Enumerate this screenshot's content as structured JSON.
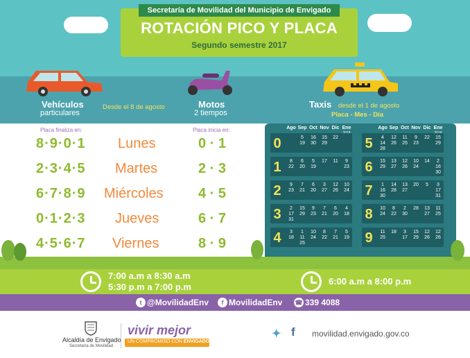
{
  "header": {
    "entity": "Secretaría de Movilidad del Municipio de Envigado",
    "title": "ROTACIÓN PICO Y PLACA",
    "subtitle": "Segundo semestre 2017"
  },
  "vehicles": {
    "cars_title": "Vehículos",
    "cars_sub": "particulares",
    "since": "Desde el 8 de agosto",
    "motos_title": "Motos",
    "motos_sub": "2 tiempos",
    "taxis_title": "Taxis",
    "taxis_since": "desde el 1 de agosto",
    "taxis_legend": "Placa - Mes - Día"
  },
  "left_panel": {
    "plate_ends_label": "Placa finaliza en:",
    "plate_starts_label": "Placa inicia en:",
    "rows": [
      {
        "ends": "8·9·0·1",
        "day": "Lunes",
        "starts": "0 · 1"
      },
      {
        "ends": "2·3·4·5",
        "day": "Martes",
        "starts": "2 · 3"
      },
      {
        "ends": "6·7·8·9",
        "day": "Miércoles",
        "starts": "4 · 5"
      },
      {
        "ends": "0·1·2·3",
        "day": "Jueves",
        "starts": "6 · 7"
      },
      {
        "ends": "4·5·6·7",
        "day": "Viernes",
        "starts": "8 · 9"
      }
    ]
  },
  "taxi_table": {
    "months": [
      "Ago",
      "Sep",
      "Oct",
      "Nov",
      "Dic",
      "Ene"
    ],
    "months_year": "2018",
    "left": [
      {
        "digit": "0",
        "cells": [
          "",
          "5\n19",
          "16\n30",
          "15\n29",
          "22",
          ""
        ]
      },
      {
        "digit": "1",
        "cells": [
          "8\n22",
          "6\n20",
          "5\n19",
          "17",
          "11",
          "9\n23"
        ]
      },
      {
        "digit": "2",
        "cells": [
          "9\n23",
          "7\n21",
          "6\n20",
          "3\n27",
          "12\n26",
          "10\n24"
        ]
      },
      {
        "digit": "3",
        "cells": [
          "2\n17\n31",
          "15\n29",
          "9\n23",
          "7\n21",
          "6\n20",
          "4\n18"
        ]
      },
      {
        "digit": "4",
        "cells": [
          "3\n18",
          "1\n11\n25",
          "10\n24",
          "8\n22",
          "7\n21",
          "5\n19"
        ]
      }
    ],
    "right": [
      {
        "digit": "5",
        "cells": [
          "4\n14\n28",
          "12\n26",
          "11\n25",
          "9\n23",
          "22",
          "15\n29"
        ]
      },
      {
        "digit": "6",
        "cells": [
          "15\n29",
          "13\n27",
          "12\n26",
          "10\n24",
          "14",
          "2\n16\n30"
        ]
      },
      {
        "digit": "7",
        "cells": [
          "1\n16\n30",
          "14\n28",
          "13\n27",
          "20",
          "5",
          "3\n17\n31"
        ]
      },
      {
        "digit": "8",
        "cells": [
          "10\n24",
          "8\n22",
          "2\n30",
          "28",
          "13\n27",
          "11\n25"
        ]
      },
      {
        "digit": "9",
        "cells": [
          "11\n25",
          "18",
          "3\n17",
          "15\n29",
          "12\n26",
          "12\n26"
        ]
      }
    ]
  },
  "schedule": {
    "private_1": "7:00 a.m a 8:30 a.m",
    "private_2": "5:30 p.m a 7:00 p.m",
    "taxis": "6:00 a.m a 8:00 p.m"
  },
  "social": {
    "twitter": "@MovilidadEnv",
    "facebook": "MovilidadEnv",
    "phone": "339 4088"
  },
  "footer": {
    "org": "Alcaldía de Envigado",
    "org_sub": "Secretaría de Movilidad",
    "slogan": "vivir mejor",
    "slogan_sub_prefix": "UN COMPROMISO CON",
    "slogan_sub_bold": "ENVIGADO",
    "website": "movilidad.envigado.gov.co"
  },
  "colors": {
    "sky": "#5cc2c3",
    "lime": "#a9d13c",
    "teal_panel": "#2a7a7f",
    "purple": "#8a62a8",
    "orange": "#f08a3c",
    "yellow": "#f2e35a"
  }
}
